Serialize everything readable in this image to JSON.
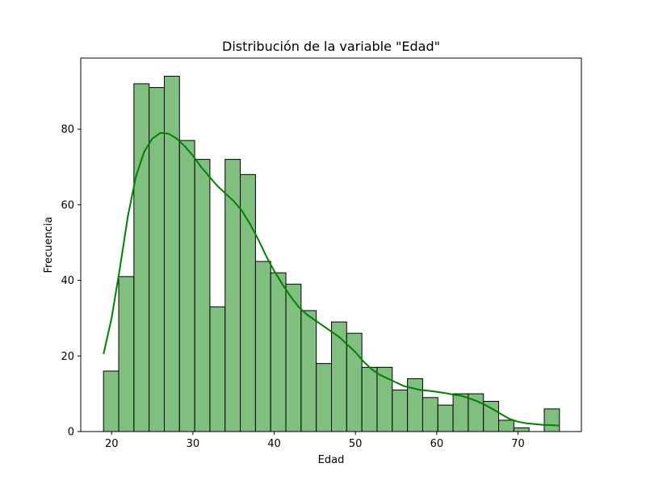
{
  "chart_data": {
    "type": "bar",
    "title": "Distribución de la variable \"Edad\"",
    "xlabel": "Edad",
    "ylabel": "Frecuencia",
    "xlim": [
      16.2,
      77.8
    ],
    "ylim": [
      0,
      98.8
    ],
    "grid": false,
    "x_ticks": [
      "20",
      "30",
      "40",
      "50",
      "60",
      "70"
    ],
    "y_ticks": [
      "0",
      "20",
      "40",
      "60",
      "80"
    ],
    "bins": {
      "start": 19,
      "width": 1.87,
      "values": [
        16,
        41,
        92,
        91,
        94,
        77,
        72,
        33,
        72,
        68,
        45,
        42,
        39,
        32,
        18,
        29,
        26,
        17,
        17,
        11,
        14,
        9,
        7,
        10,
        10,
        8,
        3,
        1,
        0,
        6
      ]
    },
    "kde_line": {
      "x": [
        19,
        20,
        21,
        22,
        23,
        24,
        25,
        26,
        27,
        28,
        29,
        30,
        31,
        32,
        33,
        34,
        35,
        36,
        37,
        38,
        39,
        40,
        41,
        42,
        43,
        44,
        45,
        46,
        47,
        48,
        49,
        50,
        51,
        52,
        53,
        54,
        55,
        56,
        57,
        58,
        59,
        60,
        61,
        62,
        63,
        64,
        65,
        66,
        67,
        68,
        69,
        70,
        71,
        72,
        73,
        74,
        75
      ],
      "y": [
        20.5,
        30,
        43,
        57,
        67.5,
        74,
        77.5,
        79,
        78.8,
        77.5,
        75.5,
        73,
        70,
        67.5,
        65,
        63,
        61,
        58.5,
        55,
        51,
        46.5,
        42.5,
        39,
        35.8,
        33,
        31,
        29.5,
        28,
        26.5,
        25,
        23,
        21,
        18.5,
        16.5,
        15,
        14,
        13,
        12,
        11.5,
        11,
        10.8,
        10.5,
        10.2,
        9.8,
        9.5,
        8.8,
        8,
        7,
        5.8,
        4.5,
        3.3,
        2.6,
        2.2,
        2,
        1.8,
        1.7,
        1.6
      ]
    },
    "colors": {
      "bar_fill": "#80bf80",
      "bar_edge": "#000000",
      "kde": "#008000"
    }
  }
}
